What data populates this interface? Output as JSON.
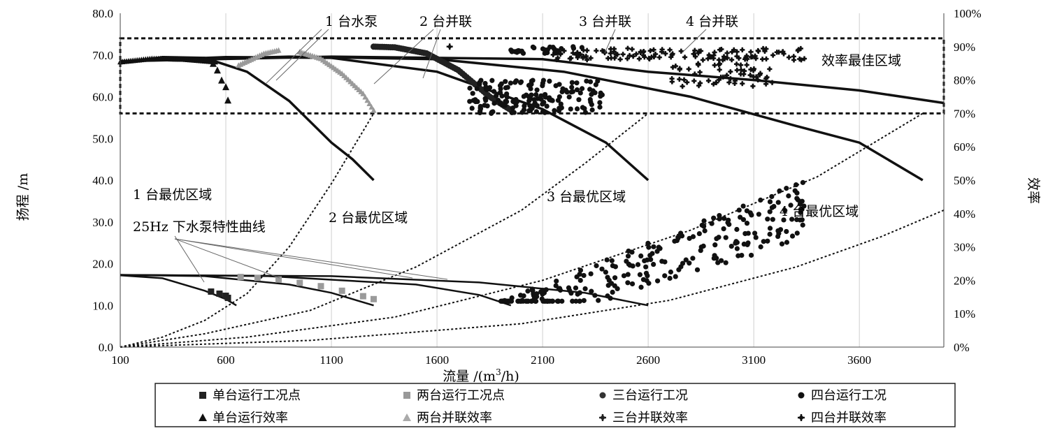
{
  "chart_data": {
    "type": "scatter",
    "xlabel_main": "流量 /(m",
    "xlabel_sup": "3",
    "xlabel_tail": "/h)",
    "ylabel_left": "扬程 /m",
    "ylabel_right": "效率",
    "xlim": [
      100,
      4000
    ],
    "ylim_left": [
      0,
      80
    ],
    "ylim_right": [
      0,
      100
    ],
    "x_ticks": [
      "100",
      "600",
      "1100",
      "1600",
      "2100",
      "2600",
      "3100",
      "3600"
    ],
    "x_tick_values": [
      100,
      600,
      1100,
      1600,
      2100,
      2600,
      3100,
      3600
    ],
    "y_left_ticks": [
      "0.0",
      "10.0",
      "20.0",
      "30.0",
      "40.0",
      "50.0",
      "60.0",
      "70.0",
      "80.0"
    ],
    "y_left_tick_values": [
      0,
      10,
      20,
      30,
      40,
      50,
      60,
      70,
      80
    ],
    "y_right_ticks": [
      "0%",
      "10%",
      "20%",
      "30%",
      "40%",
      "50%",
      "60%",
      "70%",
      "80%",
      "90%",
      "100%"
    ],
    "y_right_tick_values": [
      0,
      10,
      20,
      30,
      40,
      50,
      60,
      70,
      80,
      90,
      100
    ],
    "grid": "vertical",
    "annotations": {
      "pump1": "1 台水泵",
      "pump2": "2 台并联",
      "pump3": "3 台并联",
      "pump4": "4 台并联",
      "best_zone": "效率最佳区域",
      "opt1": "1 台最优区域",
      "opt2": "2 台最优区域",
      "opt3": "3 台最优区域",
      "opt4": "4 台最优区域",
      "curve25": "25Hz 下水泵特性曲线"
    },
    "best_efficiency_band_pct": [
      70,
      92.5
    ],
    "head_curves_50hz": [
      {
        "pumps": 1,
        "x": [
          100,
          300,
          500,
          700,
          900,
          1100,
          1200,
          1300
        ],
        "y": [
          68,
          69.5,
          69.3,
          66,
          59,
          49,
          45,
          40
        ]
      },
      {
        "pumps": 2,
        "x": [
          100,
          600,
          1100,
          1600,
          2100,
          2400,
          2600
        ],
        "y": [
          68.5,
          69.5,
          69.3,
          66,
          57,
          49,
          40
        ]
      },
      {
        "pumps": 3,
        "x": [
          100,
          900,
          1600,
          2200,
          2800,
          3300,
          3600,
          3900
        ],
        "y": [
          68.5,
          69.6,
          69,
          66,
          60,
          53,
          49,
          40
        ]
      },
      {
        "pumps": 4,
        "x": [
          100,
          1100,
          2100,
          2600,
          3100,
          3600,
          4000
        ],
        "y": [
          68.5,
          69.6,
          69,
          66,
          64,
          61.5,
          58.5
        ]
      }
    ],
    "head_curves_25hz": [
      {
        "pumps": 1,
        "x": [
          100,
          300,
          500,
          600,
          650
        ],
        "y": [
          17.2,
          16.5,
          13.5,
          11.5,
          10
        ]
      },
      {
        "pumps": 2,
        "x": [
          100,
          500,
          900,
          1100,
          1300
        ],
        "y": [
          17.3,
          17,
          15,
          13,
          10
        ]
      },
      {
        "pumps": 3,
        "x": [
          100,
          800,
          1500,
          1800,
          1950
        ],
        "y": [
          17.3,
          17,
          15,
          12.5,
          10
        ]
      },
      {
        "pumps": 4,
        "x": [
          100,
          1100,
          1800,
          2300,
          2600
        ],
        "y": [
          17.3,
          17,
          15.5,
          13,
          10
        ]
      }
    ],
    "efficiency_curves_pct": [
      {
        "pumps": 1,
        "x": [
          100,
          250,
          400,
          550
        ],
        "y": [
          85.5,
          86.5,
          86.3,
          85.5
        ]
      },
      {
        "pumps": 2,
        "x": [
          660,
          780,
          850
        ],
        "y": [
          84.5,
          88,
          89
        ]
      },
      {
        "pumps": 2,
        "x": [
          950,
          1050,
          1150,
          1250,
          1300
        ],
        "y": [
          88.5,
          86.5,
          82,
          76,
          71
        ]
      },
      {
        "pumps": 3,
        "x": [
          1300,
          1400,
          1550,
          1700,
          1850,
          1950
        ],
        "y": [
          90,
          89.8,
          88,
          83,
          75,
          71
        ]
      }
    ],
    "system_curves": [
      {
        "label": "1 台最优区域",
        "x": [
          100,
          300,
          500,
          700,
          900,
          1100,
          1300
        ],
        "y_pct": [
          0,
          3,
          8,
          16,
          30,
          49,
          70
        ]
      },
      {
        "label": "2 台最优区域",
        "x": [
          100,
          500,
          1000,
          1500,
          2000,
          2300,
          2600
        ],
        "y_pct": [
          0,
          4,
          11,
          24,
          41,
          55,
          70
        ]
      },
      {
        "label": "3 台最优区域",
        "x": [
          100,
          700,
          1400,
          2100,
          2800,
          3400,
          3900
        ],
        "y_pct": [
          0,
          3,
          9,
          20,
          35,
          51,
          70
        ]
      },
      {
        "label": "4 台最优区域",
        "x": [
          100,
          1000,
          2000,
          2700,
          3300,
          3700,
          4000
        ],
        "y_pct": [
          0,
          2,
          7,
          14,
          24,
          33,
          41
        ]
      }
    ],
    "operating_points": {
      "single_head": [
        [
          530,
          13.3
        ],
        [
          570,
          12.8
        ],
        [
          600,
          12.3
        ],
        [
          610,
          11.8
        ]
      ],
      "single_eff_pct": [
        [
          540,
          85
        ],
        [
          560,
          83
        ],
        [
          580,
          80
        ],
        [
          600,
          78
        ],
        [
          610,
          74
        ]
      ],
      "double_head": [
        [
          670,
          16.8
        ],
        [
          750,
          16.6
        ],
        [
          850,
          16.2
        ],
        [
          950,
          15.4
        ],
        [
          1050,
          14.6
        ],
        [
          1150,
          13.5
        ],
        [
          1250,
          12.2
        ],
        [
          1300,
          11.5
        ]
      ],
      "triple_eff_pct": [
        [
          1660,
          90
        ]
      ]
    },
    "op_clouds": [
      {
        "name": "三台运行工况 效率",
        "x_range": [
          1750,
          2400
        ],
        "y_pct_range": [
          70,
          80
        ],
        "n": 160
      },
      {
        "name": "三台运行工况 效率 上",
        "x_range": [
          1950,
          2300
        ],
        "y_pct_range": [
          88,
          90
        ],
        "n": 30
      },
      {
        "name": "四台并联效率",
        "x_range": [
          2150,
          3350
        ],
        "y_pct_range": [
          86,
          89.5
        ],
        "n": 130
      },
      {
        "name": "四台并联效率 下",
        "x_range": [
          2700,
          3200
        ],
        "y_pct_range": [
          78,
          85
        ],
        "n": 60
      },
      {
        "name": "四台运行工况",
        "x_range": [
          1900,
          3350
        ],
        "y_range": [
          11,
          40
        ],
        "n": 260
      }
    ],
    "legend": [
      "单台运行工况点",
      "两台运行工况点",
      "三台运行工况",
      "四台运行工况",
      "单台运行效率",
      "两台并联效率",
      "三台并联效率",
      "四台并联效率"
    ],
    "legend_markers": [
      "square",
      "square",
      "dot",
      "dot",
      "triangle",
      "triangle",
      "cross",
      "cross"
    ],
    "legend_colors": [
      "#222222",
      "#999999",
      "#333333",
      "#111111",
      "#111111",
      "#aaaaaa",
      "#222222",
      "#111111"
    ]
  }
}
